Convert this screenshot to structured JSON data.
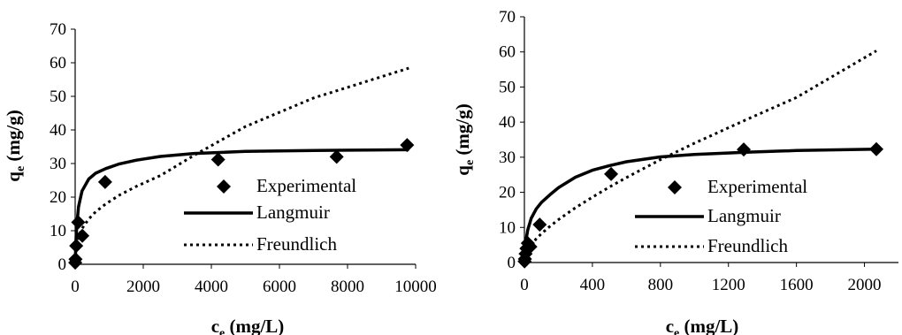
{
  "chart_data": [
    {
      "type": "scatter",
      "xlim": [
        0,
        10000
      ],
      "ylim": [
        0,
        70
      ],
      "xticks": [
        0,
        2000,
        4000,
        6000,
        8000,
        10000
      ],
      "yticks": [
        0,
        10,
        20,
        30,
        40,
        50,
        60,
        70
      ],
      "xticklabels": [
        "0",
        "2000",
        "4000",
        "6000",
        "8000",
        "10000"
      ],
      "yticklabels": [
        "0",
        "10",
        "20",
        "30",
        "40",
        "50",
        "60",
        "70"
      ],
      "xlabel": {
        "main": "c",
        "sub": "e",
        "unit": " (mg/L)"
      },
      "ylabel": {
        "main": "q",
        "sub": "e",
        "unit": " (mg/g)"
      },
      "grid": false,
      "legend_position": "right",
      "series": [
        {
          "name": "Experimental",
          "style": "diamond-markers",
          "color": "#000000",
          "x": [
            2,
            10,
            30,
            90,
            210,
            880,
            4200,
            7680,
            9750
          ],
          "y": [
            0.5,
            1.5,
            5.5,
            12.5,
            8.5,
            24.5,
            31.2,
            32.0,
            35.5
          ]
        },
        {
          "name": "Langmuir",
          "style": "solid-line",
          "color": "#000000",
          "x": [
            0,
            20,
            50,
            100,
            200,
            400,
            600,
            900,
            1300,
            1800,
            2500,
            3500,
            5000,
            7000,
            9800
          ],
          "y": [
            0,
            6.3,
            11.9,
            17.1,
            21.8,
            25.4,
            27.1,
            28.5,
            29.9,
            31.0,
            32.1,
            33.0,
            33.6,
            33.9,
            34.1
          ]
        },
        {
          "name": "Freundlich",
          "style": "dotted-line",
          "color": "#000000",
          "x": [
            0,
            20,
            50,
            100,
            200,
            400,
            600,
            900,
            1300,
            1800,
            2500,
            3500,
            5000,
            7000,
            9800
          ],
          "y": [
            0,
            4.5,
            6.5,
            8.3,
            10.6,
            13.5,
            15.6,
            18.0,
            20.6,
            23.2,
            26.4,
            32.5,
            41.0,
            49.5,
            58.4
          ]
        }
      ]
    },
    {
      "type": "scatter",
      "xlim": [
        0,
        2200
      ],
      "ylim": [
        0,
        70
      ],
      "xticks": [
        0,
        400,
        800,
        1200,
        1600,
        2000
      ],
      "yticks": [
        0,
        10,
        20,
        30,
        40,
        50,
        60,
        70
      ],
      "xticklabels": [
        "0",
        "400",
        "800",
        "1200",
        "1600",
        "2000"
      ],
      "yticklabels": [
        "0",
        "10",
        "20",
        "30",
        "40",
        "50",
        "60",
        "70"
      ],
      "xlabel": {
        "main": "c",
        "sub": "e",
        "unit": " (mg/L)"
      },
      "ylabel": {
        "main": "q",
        "sub": "e",
        "unit": " (mg/g)"
      },
      "grid": false,
      "legend_position": "right",
      "series": [
        {
          "name": "Experimental",
          "style": "diamond-markers",
          "color": "#000000",
          "x": [
            1,
            3,
            7,
            12,
            20,
            35,
            90,
            510,
            1290,
            2070
          ],
          "y": [
            0.3,
            1.0,
            2.5,
            4.0,
            5.5,
            4.5,
            10.8,
            25.2,
            32.2,
            32.3
          ]
        },
        {
          "name": "Langmuir",
          "style": "solid-line",
          "color": "#000000",
          "x": [
            0,
            10,
            20,
            40,
            70,
            100,
            150,
            200,
            300,
            400,
            500,
            600,
            800,
            1000,
            1300,
            1600,
            2070
          ],
          "y": [
            0,
            6.5,
            9.3,
            12.6,
            15.3,
            17.1,
            19.3,
            21.3,
            24.3,
            26.3,
            27.6,
            28.7,
            30.1,
            30.8,
            31.4,
            31.9,
            32.3
          ]
        },
        {
          "name": "Freundlich",
          "style": "dotted-line",
          "color": "#000000",
          "x": [
            0,
            10,
            20,
            40,
            70,
            100,
            150,
            200,
            300,
            400,
            500,
            600,
            800,
            1000,
            1300,
            1600,
            2070
          ],
          "y": [
            0,
            2.3,
            3.4,
            5.0,
            6.8,
            8.2,
            10.3,
            12.2,
            15.6,
            18.6,
            21.5,
            24.2,
            29.3,
            34.0,
            40.6,
            47.0,
            60.3
          ]
        }
      ]
    }
  ]
}
